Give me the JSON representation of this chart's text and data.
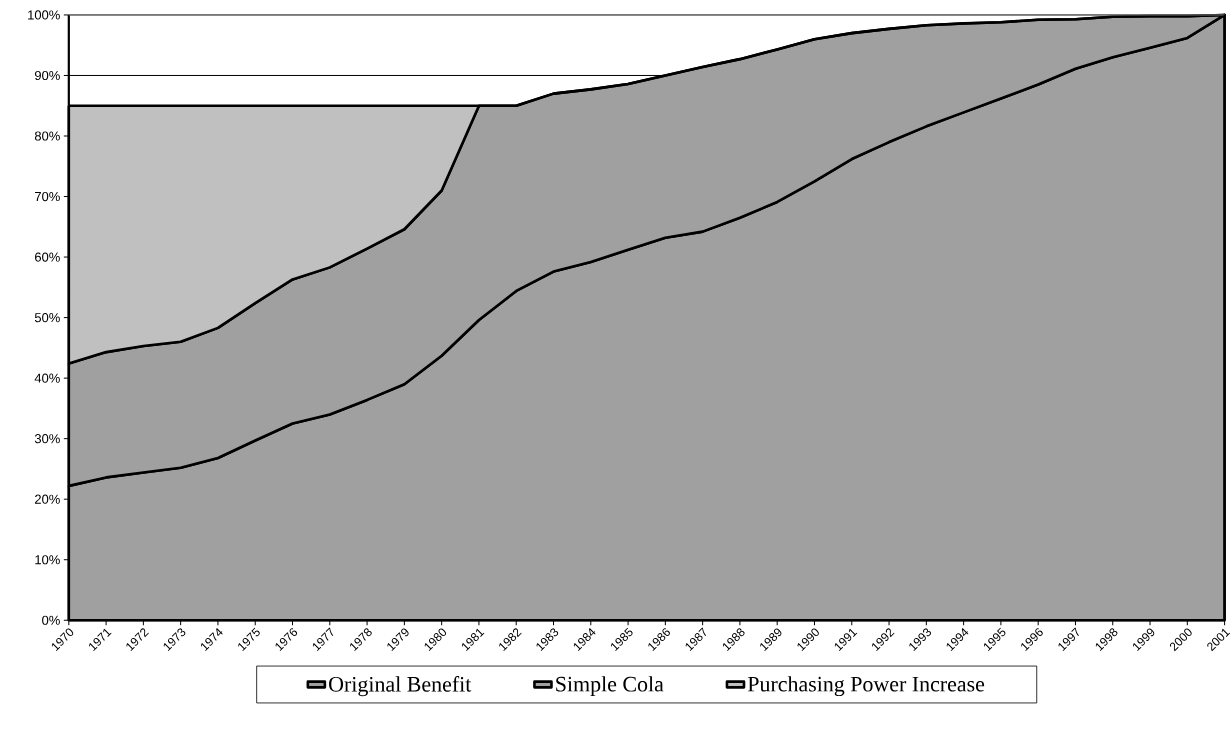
{
  "chart_data": {
    "type": "area",
    "stacked": true,
    "categories": [
      "1970",
      "1971",
      "1972",
      "1973",
      "1974",
      "1975",
      "1976",
      "1977",
      "1978",
      "1979",
      "1980",
      "1981",
      "1982",
      "1983",
      "1984",
      "1985",
      "1986",
      "1987",
      "1988",
      "1989",
      "1990",
      "1991",
      "1992",
      "1993",
      "1994",
      "1995",
      "1996",
      "1997",
      "1998",
      "1999",
      "2000",
      "2001"
    ],
    "series": [
      {
        "name": "Original Benefit",
        "color": "#a0a0a0",
        "values": [
          22.2,
          23.6,
          24.4,
          25.2,
          26.8,
          29.7,
          32.5,
          34.0,
          36.4,
          39.0,
          43.7,
          49.6,
          54.4,
          57.6,
          59.2,
          61.2,
          63.2,
          64.2,
          66.5,
          69.1,
          72.5,
          76.2,
          79.0,
          81.6,
          83.9,
          86.2,
          88.5,
          91.1,
          93.0,
          94.6,
          96.2,
          100
        ]
      },
      {
        "name": "Simple Cola",
        "color": "#a0a0a0",
        "values": [
          20.2,
          20.7,
          20.9,
          20.8,
          21.5,
          22.7,
          23.8,
          24.3,
          25.0,
          25.6,
          27.3,
          35.4,
          30.6,
          29.4,
          28.5,
          27.4,
          26.8,
          27.2,
          26.2,
          25.2,
          23.5,
          20.8,
          18.7,
          16.7,
          14.7,
          12.6,
          10.7,
          8.2,
          6.7,
          5.2,
          3.6,
          0
        ]
      },
      {
        "name": "Purchasing Power Increase",
        "color": "#c0c0c0",
        "values": [
          42.6,
          40.7,
          39.7,
          39.0,
          36.7,
          32.6,
          28.7,
          26.7,
          23.6,
          20.4,
          14.0,
          0,
          0,
          0,
          0,
          0,
          0,
          0,
          0,
          0,
          0,
          0,
          0,
          0,
          0,
          0,
          0,
          0,
          0,
          0,
          0,
          0
        ]
      }
    ],
    "ylim": [
      0,
      100
    ],
    "yticks": [
      {
        "value": 0,
        "label": "0%"
      },
      {
        "value": 10,
        "label": "10%"
      },
      {
        "value": 20,
        "label": "20%"
      },
      {
        "value": 30,
        "label": "30%"
      },
      {
        "value": 40,
        "label": "40%"
      },
      {
        "value": 50,
        "label": "50%"
      },
      {
        "value": 60,
        "label": "60%"
      },
      {
        "value": 70,
        "label": "70%"
      },
      {
        "value": 80,
        "label": "80%"
      },
      {
        "value": 90,
        "label": "90%"
      },
      {
        "value": 100,
        "label": "100%"
      }
    ],
    "grid": "y",
    "legend": "bottom"
  }
}
